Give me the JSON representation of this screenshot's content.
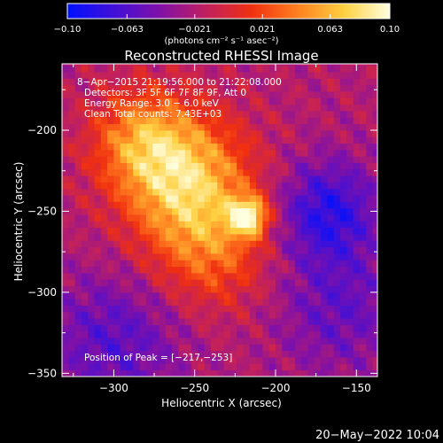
{
  "chart_data": {
    "type": "heatmap",
    "title": "Reconstructed RHESSI Image",
    "xlabel": "Heliocentric X (arcsec)",
    "ylabel": "Heliocentric Y (arcsec)",
    "xlim": [
      -332,
      -137
    ],
    "ylim": [
      -352,
      -159
    ],
    "x_ticks": [
      -300,
      -250,
      -200,
      -150
    ],
    "y_ticks": [
      -200,
      -250,
      -300,
      -350
    ],
    "x_tick_labels": [
      "−300",
      "−250",
      "−200",
      "−150"
    ],
    "y_tick_labels": [
      "−200",
      "−250",
      "−300",
      "−350"
    ],
    "colorbar": {
      "range": [
        -0.1,
        0.1
      ],
      "ticks": [
        -0.1,
        -0.063,
        -0.021,
        0.021,
        0.063,
        0.1
      ],
      "tick_labels": [
        "−0.10",
        "−0.063",
        "−0.021",
        "0.021",
        "0.063",
        "0.10"
      ],
      "units_label": "(photons cm⁻² s⁻¹ asec⁻²)",
      "colors": [
        "#0010ff",
        "#4010d8",
        "#8010a8",
        "#c02060",
        "#f03010",
        "#ff8020",
        "#ffd040",
        "#ffffe0"
      ]
    },
    "annotations": [
      "8−Apr−2015 21:19:56.000 to 21:22:08.000",
      "Detectors: 3F 5F 6F 7F 8F 9F, Att 0",
      "Energy Range: 3.0 − 6.0 keV",
      "Clean     Total counts: 7.43E+03",
      "Position of Peak = [−217,−253]"
    ],
    "peak_position": [
      -217,
      -253
    ],
    "sources": [
      {
        "x": -255,
        "y": -232,
        "sigma": 28,
        "amplitude": 0.085
      },
      {
        "x": -217,
        "y": -253,
        "sigma": 8,
        "amplitude": 0.1
      },
      {
        "x": -282,
        "y": -205,
        "sigma": 22,
        "amplitude": 0.06
      },
      {
        "x": -240,
        "y": -275,
        "sigma": 26,
        "amplitude": 0.045
      },
      {
        "x": -168,
        "y": -250,
        "sigma": 22,
        "amplitude": -0.06
      },
      {
        "x": -300,
        "y": -330,
        "sigma": 30,
        "amplitude": -0.04
      },
      {
        "x": -160,
        "y": -310,
        "sigma": 28,
        "amplitude": -0.035
      }
    ]
  },
  "footer": {
    "date": "20−May−2022 10:04"
  }
}
